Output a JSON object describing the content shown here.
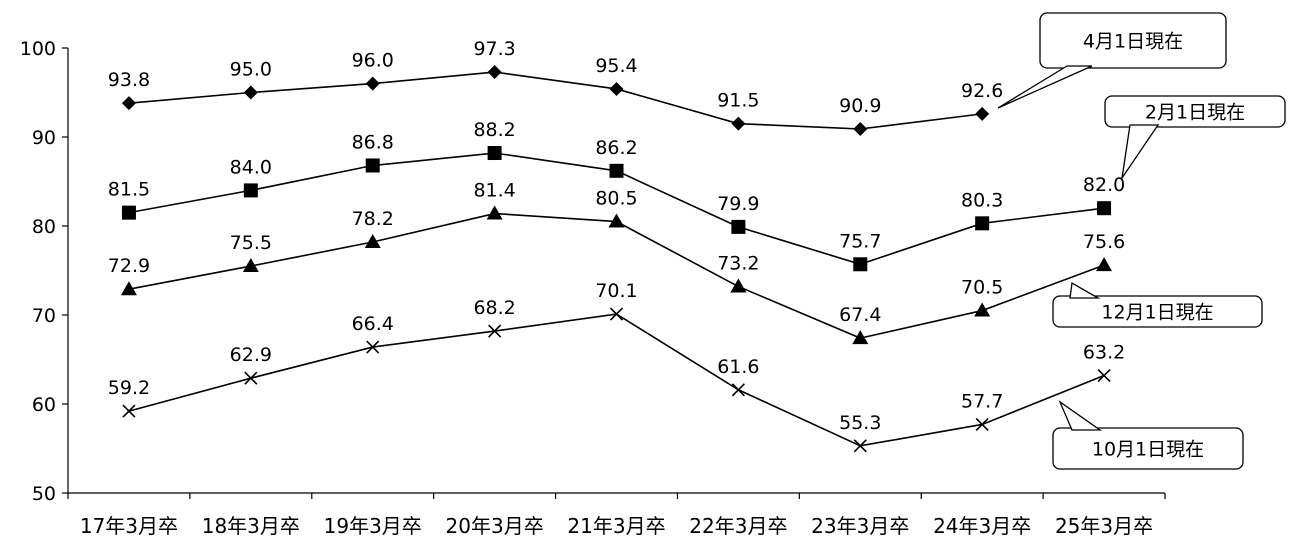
{
  "chart_data": {
    "type": "line",
    "categories": [
      "17年3月卒",
      "18年3月卒",
      "19年3月卒",
      "20年3月卒",
      "21年3月卒",
      "22年3月卒",
      "23年3月卒",
      "24年3月卒",
      "25年3月卒"
    ],
    "ylim": [
      50,
      100
    ],
    "yticks": [
      50,
      60,
      70,
      80,
      90,
      100
    ],
    "grid": false,
    "series": [
      {
        "name": "4月1日現在",
        "marker": "diamond",
        "values": [
          93.8,
          95.0,
          96.0,
          97.3,
          95.4,
          91.5,
          90.9,
          92.6,
          null
        ]
      },
      {
        "name": "2月1日現在",
        "marker": "square",
        "values": [
          81.5,
          84.0,
          86.8,
          88.2,
          86.2,
          79.9,
          75.7,
          80.3,
          82.0
        ]
      },
      {
        "name": "12月1日現在",
        "marker": "triangle",
        "values": [
          72.9,
          75.5,
          78.2,
          81.4,
          80.5,
          73.2,
          67.4,
          70.5,
          75.6
        ]
      },
      {
        "name": "10月1日現在",
        "marker": "cross",
        "values": [
          59.2,
          62.9,
          66.4,
          68.2,
          70.1,
          61.6,
          55.3,
          57.7,
          63.2
        ]
      }
    ]
  }
}
